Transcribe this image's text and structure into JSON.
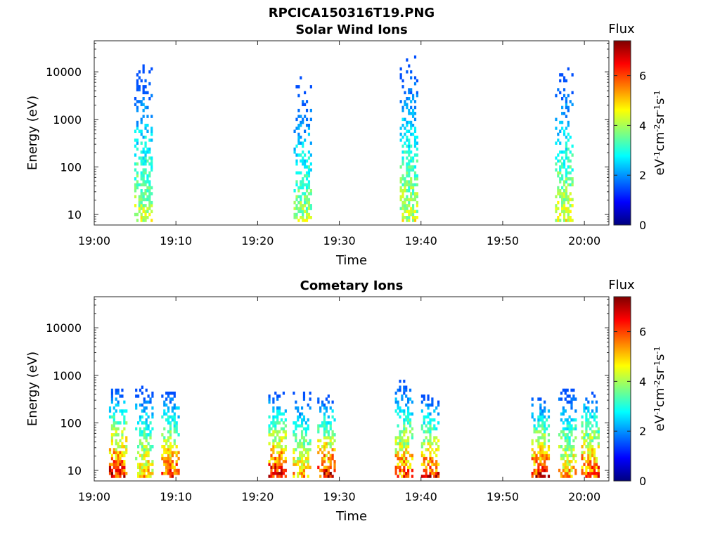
{
  "figure": {
    "title_line1": "RPCICA150316T19.PNG"
  },
  "colormap": [
    "#00007f",
    "#0000ff",
    "#007fff",
    "#00ffff",
    "#7fff7f",
    "#ffff00",
    "#ff7f00",
    "#ff0000",
    "#7f0000"
  ],
  "chart_data": [
    {
      "type": "heatmap",
      "title": "Solar Wind Ions",
      "xlabel": "Time",
      "ylabel": "Energy (eV)",
      "x_range_minutes": [
        0,
        63
      ],
      "y_range_eV": [
        6,
        45000
      ],
      "y_scale": "log",
      "x_tick_labels": [
        "19:00",
        "19:10",
        "19:20",
        "19:30",
        "19:40",
        "19:50",
        "20:00"
      ],
      "y_tick_labels": [
        "10",
        "100",
        "1000",
        "10000"
      ],
      "colorbar": {
        "label": "Flux",
        "unit": "eV-1cm-2sr-1s-1",
        "range": [
          0,
          7.4
        ],
        "ticks": [
          "0",
          "2",
          "4",
          "6"
        ]
      },
      "grid": false,
      "clusters": [
        {
          "center_minute": 6.0,
          "width_minutes": 2.2,
          "energy_range_eV": [
            7,
            14000
          ],
          "peak_flux": 4.6
        },
        {
          "center_minute": 25.5,
          "width_minutes": 2.2,
          "energy_range_eV": [
            7,
            8000
          ],
          "peak_flux": 4.3
        },
        {
          "center_minute": 38.5,
          "width_minutes": 2.2,
          "energy_range_eV": [
            7,
            25000
          ],
          "peak_flux": 4.6
        },
        {
          "center_minute": 57.5,
          "width_minutes": 2.2,
          "energy_range_eV": [
            7,
            11000
          ],
          "peak_flux": 4.8
        }
      ]
    },
    {
      "type": "heatmap",
      "title": "Cometary Ions",
      "xlabel": "Time",
      "ylabel": "Energy (eV)",
      "x_range_minutes": [
        0,
        63
      ],
      "y_range_eV": [
        6,
        45000
      ],
      "y_scale": "log",
      "x_tick_labels": [
        "19:00",
        "19:10",
        "19:20",
        "19:30",
        "19:40",
        "19:50",
        "20:00"
      ],
      "y_tick_labels": [
        "10",
        "100",
        "1000",
        "10000"
      ],
      "colorbar": {
        "label": "Flux",
        "unit": "eV-1cm-2sr-1s-1",
        "range": [
          0,
          7.4
        ],
        "ticks": [
          "0",
          "2",
          "4",
          "6"
        ]
      },
      "grid": false,
      "clusters": [
        {
          "center_minute": 2.8,
          "width_minutes": 2.0,
          "energy_range_eV": [
            7,
            500
          ],
          "peak_flux": 7.0
        },
        {
          "center_minute": 6.0,
          "width_minutes": 2.0,
          "energy_range_eV": [
            7,
            600
          ],
          "peak_flux": 5.5
        },
        {
          "center_minute": 9.2,
          "width_minutes": 2.0,
          "energy_range_eV": [
            7,
            450
          ],
          "peak_flux": 6.5
        },
        {
          "center_minute": 22.3,
          "width_minutes": 2.0,
          "energy_range_eV": [
            7,
            400
          ],
          "peak_flux": 7.0
        },
        {
          "center_minute": 25.3,
          "width_minutes": 2.0,
          "energy_range_eV": [
            7,
            450
          ],
          "peak_flux": 5.5
        },
        {
          "center_minute": 28.3,
          "width_minutes": 2.0,
          "energy_range_eV": [
            7,
            350
          ],
          "peak_flux": 7.0
        },
        {
          "center_minute": 37.8,
          "width_minutes": 2.0,
          "energy_range_eV": [
            7,
            700
          ],
          "peak_flux": 6.3
        },
        {
          "center_minute": 41.0,
          "width_minutes": 2.0,
          "energy_range_eV": [
            7,
            350
          ],
          "peak_flux": 6.7
        },
        {
          "center_minute": 54.5,
          "width_minutes": 2.0,
          "energy_range_eV": [
            7,
            350
          ],
          "peak_flux": 6.8
        },
        {
          "center_minute": 57.8,
          "width_minutes": 2.0,
          "energy_range_eV": [
            7,
            500
          ],
          "peak_flux": 5.7
        },
        {
          "center_minute": 60.6,
          "width_minutes": 2.0,
          "energy_range_eV": [
            7,
            450
          ],
          "peak_flux": 6.6
        }
      ]
    }
  ]
}
